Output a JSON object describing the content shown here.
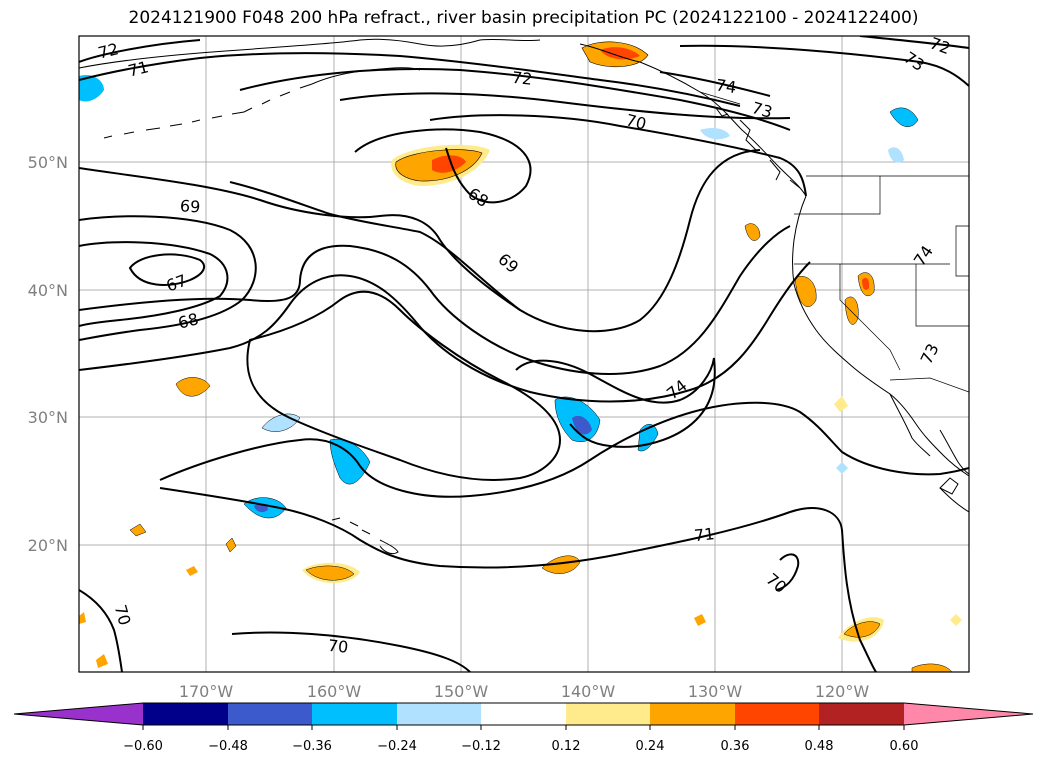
{
  "title": "2024121900 F048 200 hPa refract., river basin precipitation PC (2024122100 - 2024122400)",
  "lat_labels": [
    "50°N",
    "40°N",
    "30°N",
    "20°N"
  ],
  "lon_labels": [
    "170°W",
    "160°W",
    "150°W",
    "140°W",
    "130°W",
    "120°W"
  ],
  "contour_labels": [
    "72",
    "71",
    "72",
    "74",
    "73",
    "70",
    "73",
    "72",
    "69",
    "68",
    "69",
    "67",
    "68",
    "74",
    "74",
    "73",
    "71",
    "70",
    "70",
    "70"
  ],
  "colorbar": {
    "ticks": [
      "−0.60",
      "−0.48",
      "−0.36",
      "−0.24",
      "−0.12",
      "0.12",
      "0.24",
      "0.36",
      "0.48",
      "0.60"
    ],
    "colors": [
      "#9932cc",
      "#00008b",
      "#3c5acc",
      "#00bfff",
      "#b0e2ff",
      "#ffffff",
      "#ffeb8c",
      "#ffa500",
      "#ff4500",
      "#b22222",
      "#ff88aa"
    ]
  },
  "colors": {
    "contour": "#000000",
    "coastline": "#000000",
    "gridline": "#b0b0b0",
    "axis_label": "#808080"
  }
}
